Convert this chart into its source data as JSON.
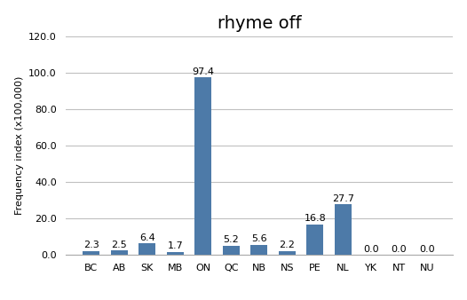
{
  "title": "rhyme off",
  "categories": [
    "BC",
    "AB",
    "SK",
    "MB",
    "ON",
    "QC",
    "NB",
    "NS",
    "PE",
    "NL",
    "YK",
    "NT",
    "NU"
  ],
  "values": [
    2.3,
    2.5,
    6.4,
    1.7,
    97.4,
    5.2,
    5.6,
    2.2,
    16.8,
    27.7,
    0.0,
    0.0,
    0.0
  ],
  "bar_color": "#4d7aa8",
  "ylabel": "Frequency index (x100,000)",
  "ylim": [
    0,
    120.0
  ],
  "yticks": [
    0.0,
    20.0,
    40.0,
    60.0,
    80.0,
    100.0,
    120.0
  ],
  "title_fontsize": 14,
  "label_fontsize": 8,
  "axis_fontsize": 8,
  "tick_fontsize": 8,
  "background_color": "#ffffff",
  "grid_color": "#c0c0c0"
}
